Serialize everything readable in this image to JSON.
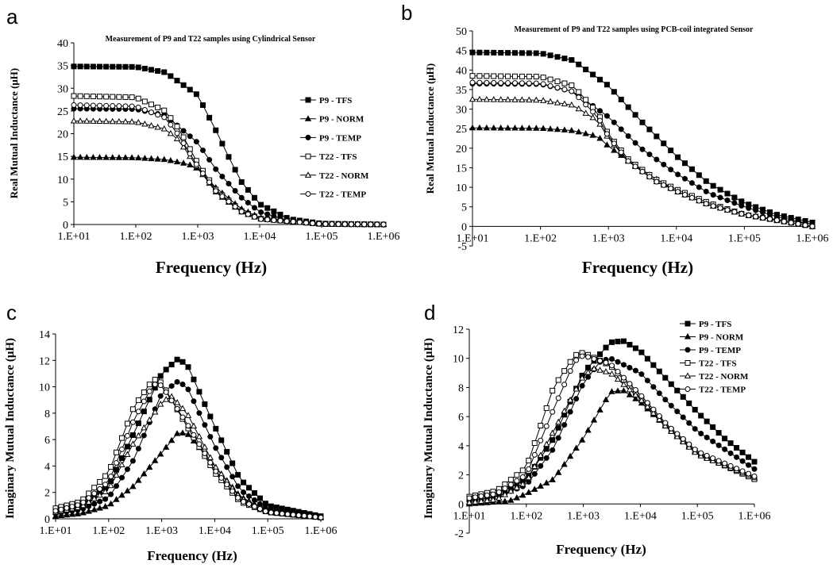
{
  "chart_data": [
    {
      "panel": "a",
      "type": "line",
      "title": "Measurement of P9 and T22 samples using Cylindrical Sensor",
      "xlabel": "Frequency (Hz)",
      "ylabel": "Real Mutual Inductance (μH)",
      "xscale": "log",
      "xlim": [
        10,
        1000000
      ],
      "ylim": [
        0,
        40
      ],
      "yticks": [
        "0",
        "5",
        "10",
        "15",
        "20",
        "25",
        "30",
        "35",
        "40"
      ],
      "xticks": [
        "1.E+01",
        "1.E+02",
        "1.E+03",
        "1.E+04",
        "1.E+05",
        "1.E+06"
      ],
      "legend": "right",
      "series": [
        {
          "name": "P9 - TFS",
          "marker": "square-filled",
          "x": [
            10,
            100,
            300,
            1000,
            2000,
            3000,
            5000,
            10000,
            30000,
            100000,
            1000000
          ],
          "y": [
            34.8,
            34.7,
            33.5,
            28.5,
            20.5,
            15.5,
            9.5,
            4.5,
            1.2,
            0.2,
            0
          ]
        },
        {
          "name": "P9 - NORM",
          "marker": "triangle-filled",
          "x": [
            10,
            100,
            300,
            700,
            1000,
            2000,
            5000,
            10000,
            100000,
            1000000
          ],
          "y": [
            14.8,
            14.7,
            14.3,
            13.3,
            12.3,
            8,
            3.5,
            1.5,
            0.1,
            0
          ]
        },
        {
          "name": "P9 - TEMP",
          "marker": "circle-filled",
          "x": [
            10,
            100,
            300,
            1000,
            2000,
            5000,
            10000,
            30000,
            100000,
            1000000
          ],
          "y": [
            25.5,
            25.4,
            24,
            18,
            12,
            6,
            2.8,
            0.8,
            0.1,
            0
          ]
        },
        {
          "name": "T22 - TFS",
          "marker": "square-open",
          "x": [
            10,
            100,
            300,
            500,
            1000,
            2000,
            5000,
            10000,
            100000,
            1000000
          ],
          "y": [
            28.3,
            28,
            25,
            21,
            13.5,
            7.5,
            3,
            1.3,
            0.1,
            0
          ]
        },
        {
          "name": "T22 - NORM",
          "marker": "triangle-open",
          "x": [
            10,
            100,
            300,
            500,
            1000,
            2000,
            5000,
            10000,
            100000,
            1000000
          ],
          "y": [
            22.8,
            22.6,
            21,
            18.5,
            12.5,
            7,
            2.8,
            1.2,
            0.1,
            0
          ]
        },
        {
          "name": "T22 - TEMP",
          "marker": "circle-open",
          "x": [
            10,
            100,
            300,
            500,
            1000,
            2000,
            5000,
            10000,
            100000,
            1000000
          ],
          "y": [
            26.3,
            26,
            23.5,
            19.5,
            12.8,
            7.2,
            2.9,
            1.2,
            0.1,
            0
          ]
        }
      ]
    },
    {
      "panel": "b",
      "type": "line",
      "title": "Measurement of P9 and T22 samples using PCB-coil integrated Sensor",
      "xlabel": "Frequency (Hz)",
      "ylabel": "Real Mutual Inductance (μH)",
      "xscale": "log",
      "xlim": [
        10,
        1000000
      ],
      "ylim": [
        -5,
        50
      ],
      "yticks": [
        "-5",
        "0",
        "5",
        "10",
        "15",
        "20",
        "25",
        "30",
        "35",
        "40",
        "45",
        "50"
      ],
      "xticks": [
        "1.E+01",
        "1.E+02",
        "1.E+03",
        "1.E+04",
        "1.E+05",
        "1.E+06"
      ],
      "series": [
        {
          "name": "P9 - TFS",
          "marker": "square-filled",
          "x": [
            10,
            100,
            300,
            1000,
            3000,
            10000,
            30000,
            100000,
            300000,
            1000000
          ],
          "y": [
            44.5,
            44.3,
            42.5,
            36,
            27,
            18,
            11,
            6,
            3,
            1
          ]
        },
        {
          "name": "P9 - NORM",
          "marker": "triangle-filled",
          "x": [
            10,
            100,
            300,
            700,
            1000,
            3000,
            10000,
            30000,
            100000,
            1000000
          ],
          "y": [
            25.2,
            25.1,
            24.5,
            23,
            20.5,
            14.5,
            9,
            5.5,
            3,
            0.5
          ]
        },
        {
          "name": "P9 - TEMP",
          "marker": "circle-filled",
          "x": [
            10,
            100,
            300,
            1000,
            3000,
            10000,
            30000,
            100000,
            300000,
            1000000
          ],
          "y": [
            36.5,
            36.4,
            34.5,
            28,
            20,
            13.5,
            8.5,
            5,
            2.5,
            0.5
          ]
        },
        {
          "name": "T22 - TFS",
          "marker": "square-open",
          "x": [
            10,
            100,
            300,
            700,
            1000,
            2000,
            5000,
            10000,
            30000,
            100000,
            1000000
          ],
          "y": [
            38.5,
            38.3,
            36,
            29,
            23.5,
            17,
            12,
            9.5,
            6,
            3,
            0
          ]
        },
        {
          "name": "T22 - NORM",
          "marker": "triangle-open",
          "x": [
            10,
            100,
            300,
            700,
            1000,
            2000,
            5000,
            10000,
            30000,
            100000,
            1000000
          ],
          "y": [
            32.5,
            32.3,
            31,
            27,
            22.5,
            16.5,
            11.5,
            9,
            5.5,
            3,
            0
          ]
        },
        {
          "name": "T22 - TEMP",
          "marker": "circle-open",
          "x": [
            10,
            100,
            300,
            700,
            1000,
            2000,
            5000,
            10000,
            30000,
            100000,
            1000000
          ],
          "y": [
            36.8,
            36.6,
            34.5,
            28,
            23,
            16.5,
            11.5,
            9,
            5.5,
            3,
            0
          ]
        }
      ]
    },
    {
      "panel": "c",
      "type": "line",
      "title": "",
      "xlabel": "Frequency (Hz)",
      "ylabel": "Imaginary Mutual Inductance (μH)",
      "xscale": "log",
      "xlim": [
        10,
        1000000
      ],
      "ylim": [
        0,
        14
      ],
      "yticks": [
        "0",
        "2",
        "4",
        "6",
        "8",
        "10",
        "12",
        "14"
      ],
      "xticks": [
        "1.E+01",
        "1.E+02",
        "1.E+03",
        "1.E+04",
        "1.E+05",
        "1.E+06"
      ],
      "series": [
        {
          "name": "P9 - TFS",
          "marker": "square-filled",
          "x": [
            10,
            30,
            100,
            300,
            1000,
            2000,
            3000,
            10000,
            30000,
            100000,
            1000000
          ],
          "y": [
            0.7,
            1,
            2.5,
            6.5,
            11,
            12.1,
            11.7,
            7,
            3,
            1,
            0.2
          ]
        },
        {
          "name": "P9 - NORM",
          "marker": "triangle-filled",
          "x": [
            10,
            30,
            100,
            300,
            1000,
            2000,
            3000,
            10000,
            30000,
            100000,
            1000000
          ],
          "y": [
            0.2,
            0.4,
            1,
            2.5,
            5,
            6.5,
            6.5,
            4,
            1.7,
            0.6,
            0.1
          ]
        },
        {
          "name": "P9 - TEMP",
          "marker": "circle-filled",
          "x": [
            10,
            30,
            100,
            300,
            1000,
            2000,
            3000,
            10000,
            30000,
            100000,
            1000000
          ],
          "y": [
            0.4,
            0.7,
            1.6,
            4.5,
            9.5,
            10.4,
            10,
            5.5,
            2.2,
            0.7,
            0.1
          ]
        },
        {
          "name": "T22 - TFS",
          "marker": "square-open",
          "x": [
            10,
            30,
            100,
            300,
            700,
            1000,
            3000,
            10000,
            30000,
            100000,
            1000000
          ],
          "y": [
            0.8,
            1.3,
            3.5,
            8.5,
            10.6,
            10.3,
            7,
            3.5,
            1.3,
            0.5,
            0.1
          ]
        },
        {
          "name": "T22 - NORM",
          "marker": "triangle-open",
          "x": [
            10,
            30,
            100,
            300,
            1000,
            1500,
            3000,
            10000,
            30000,
            100000,
            1000000
          ],
          "y": [
            0.5,
            0.9,
            2.2,
            5.8,
            8.8,
            9.3,
            8,
            4,
            1.6,
            0.5,
            0.1
          ]
        },
        {
          "name": "T22 - TEMP",
          "marker": "circle-open",
          "x": [
            10,
            30,
            100,
            300,
            700,
            1000,
            3000,
            10000,
            30000,
            100000,
            1000000
          ],
          "y": [
            0.6,
            1.1,
            2.8,
            7.5,
            10.2,
            10.1,
            7.2,
            3.7,
            1.4,
            0.5,
            0.1
          ]
        }
      ]
    },
    {
      "panel": "d",
      "type": "line",
      "title": "",
      "xlabel": "Frequency (Hz)",
      "ylabel": "Imaginary Mutual Inductance (μH)",
      "xscale": "log",
      "xlim": [
        10,
        1000000
      ],
      "ylim": [
        -2,
        12
      ],
      "yticks": [
        "-2",
        "0",
        "2",
        "4",
        "6",
        "8",
        "10",
        "12"
      ],
      "xticks": [
        "1.E+01",
        "1.E+02",
        "1.E+03",
        "1.E+04",
        "1.E+05",
        "1.E+06"
      ],
      "legend": "top-right",
      "series": [
        {
          "name": "P9 - TFS",
          "marker": "square-filled",
          "x": [
            10,
            30,
            100,
            300,
            1000,
            3000,
            5000,
            10000,
            30000,
            100000,
            300000,
            1000000
          ],
          "y": [
            0.3,
            0.7,
            1.7,
            4.5,
            9,
            11.1,
            11.2,
            10.5,
            8.5,
            6.3,
            4.5,
            2.9
          ]
        },
        {
          "name": "P9 - NORM",
          "marker": "triangle-filled",
          "x": [
            10,
            50,
            100,
            300,
            1000,
            3000,
            5000,
            10000,
            30000,
            100000,
            1000000
          ],
          "y": [
            0,
            0.2,
            0.7,
            1.7,
            4.5,
            7.7,
            7.8,
            7,
            5.2,
            3.5,
            1.8
          ]
        },
        {
          "name": "P9 - TEMP",
          "marker": "circle-filled",
          "x": [
            10,
            30,
            100,
            300,
            1000,
            2000,
            3000,
            10000,
            30000,
            100000,
            1000000
          ],
          "y": [
            0.2,
            0.5,
            1.3,
            3.8,
            8.3,
            9.8,
            10,
            9,
            7,
            5,
            2.4
          ]
        },
        {
          "name": "T22 - TFS",
          "marker": "square-open",
          "x": [
            10,
            30,
            100,
            300,
            700,
            1000,
            3000,
            10000,
            30000,
            100000,
            1000000
          ],
          "y": [
            0.5,
            0.9,
            2.5,
            8,
            10.2,
            10.4,
            9.5,
            7.3,
            5.3,
            3.5,
            1.7
          ]
        },
        {
          "name": "T22 - NORM",
          "marker": "triangle-open",
          "x": [
            10,
            30,
            100,
            300,
            1000,
            1500,
            3000,
            10000,
            30000,
            100000,
            1000000
          ],
          "y": [
            0.1,
            0.3,
            1.5,
            5,
            8.8,
            9.3,
            9,
            7.2,
            5.2,
            3.4,
            1.8
          ]
        },
        {
          "name": "T22 - TEMP",
          "marker": "circle-open",
          "x": [
            10,
            30,
            100,
            300,
            700,
            1000,
            3000,
            10000,
            30000,
            100000,
            1000000
          ],
          "y": [
            0.4,
            0.7,
            2,
            6.5,
            9.8,
            10.2,
            9.6,
            7.5,
            5.4,
            3.6,
            1.9
          ]
        }
      ]
    }
  ]
}
